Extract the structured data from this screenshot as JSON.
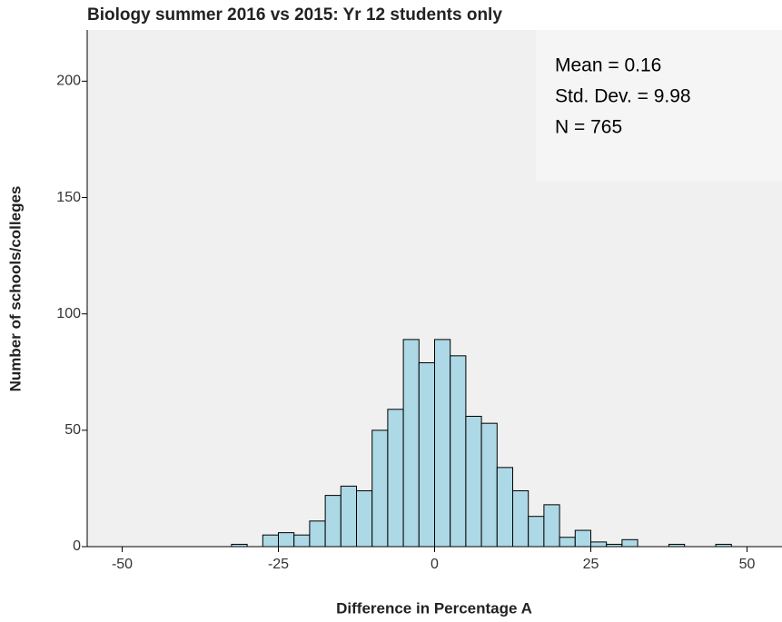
{
  "chart_data": {
    "type": "histogram",
    "title": "Biology summer 2016 vs 2015: Yr 12 students only",
    "x_label": "Difference in Percentage A",
    "y_label": "Number of schools/colleges",
    "annotations": [
      "Mean = 0.16",
      "Std. Dev. = 9.98",
      "N = 765"
    ],
    "bins": [
      -32.5,
      -30,
      -27.5,
      -25,
      -22.5,
      -20,
      -17.5,
      -15,
      -12.5,
      -10,
      -7.5,
      -5,
      -2.5,
      0,
      2.5,
      5,
      7.5,
      10,
      12.5,
      15,
      17.5,
      20,
      22.5,
      25,
      27.5,
      30,
      32.5,
      35,
      37.5,
      40,
      42.5,
      45,
      47.5
    ],
    "values": [
      1,
      0,
      5,
      6,
      5,
      11,
      22,
      26,
      24,
      50,
      59,
      89,
      79,
      89,
      82,
      56,
      53,
      34,
      24,
      13,
      18,
      4,
      7,
      2,
      1,
      3,
      0,
      0,
      1,
      0,
      0,
      1
    ],
    "color": "#add8e6",
    "xlim": [
      -55.6,
      55.6
    ],
    "xticks": [
      -50,
      -25,
      0,
      25,
      50
    ],
    "ylim": [
      0,
      222
    ],
    "yticks": [
      0,
      50,
      100,
      150,
      200
    ]
  }
}
